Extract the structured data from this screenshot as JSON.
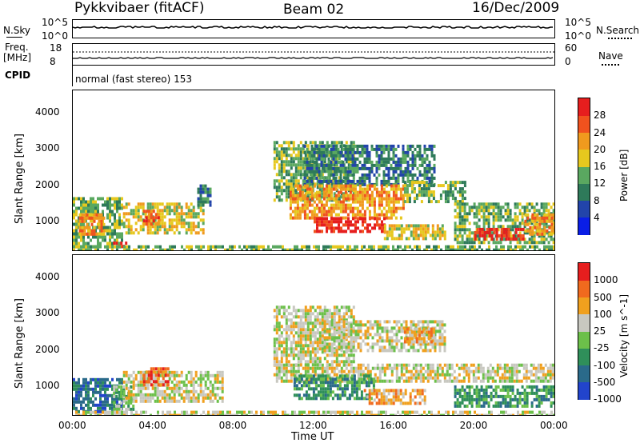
{
  "header": {
    "station": "Pykkvibaer (fitACF)",
    "beam": "Beam 02",
    "date": "16/Dec/2009"
  },
  "noise_panel": {
    "left_label": "N.Sky",
    "left_ticks": [
      "10^5",
      "10^0"
    ],
    "right_label": "N.Search",
    "right_ticks": [
      "10^5",
      "10^0"
    ],
    "series_color": "#000000"
  },
  "freq_panel": {
    "left_label_1": "Freq.",
    "left_label_2": "[MHz]",
    "left_ticks": [
      "18",
      "8"
    ],
    "right_label": "Nave",
    "right_ticks": [
      "60",
      "0"
    ],
    "cpid_label": "CPID",
    "mode_text": "normal (fast stereo) 153"
  },
  "x_axis": {
    "label": "Time UT",
    "ticks": [
      "00:00",
      "04:00",
      "08:00",
      "12:00",
      "16:00",
      "20:00",
      "00:00"
    ]
  },
  "chart_data": [
    {
      "type": "heatmap",
      "quantity": "Power",
      "xlabel": "Time UT",
      "ylabel": "Slant Range [km]",
      "xlim_hours": [
        0,
        24
      ],
      "ylim": [
        180,
        4600
      ],
      "y_ticks": [
        1000,
        2000,
        3000,
        4000
      ],
      "colorbar": {
        "label": "Power [dB]",
        "ticks": [
          28,
          24,
          20,
          16,
          12,
          8,
          4
        ],
        "colors": [
          "#0a1ee6",
          "#2244aa",
          "#2e7a5a",
          "#5aa860",
          "#e6c81e",
          "#f09a1e",
          "#f0521e",
          "#e61e1e"
        ]
      },
      "regions": [
        {
          "t": [
            0.0,
            2.5
          ],
          "r": [
            260,
            1650
          ],
          "level": 3
        },
        {
          "t": [
            0.3,
            1.6
          ],
          "r": [
            600,
            1200
          ],
          "level": 5
        },
        {
          "t": [
            2.0,
            2.6
          ],
          "r": [
            280,
            420
          ],
          "level": 7
        },
        {
          "t": [
            2.5,
            6.5
          ],
          "r": [
            700,
            1500
          ],
          "level": 4
        },
        {
          "t": [
            3.5,
            4.3
          ],
          "r": [
            900,
            1300
          ],
          "level": 6
        },
        {
          "t": [
            6.2,
            6.8
          ],
          "r": [
            1400,
            2000
          ],
          "level": 2
        },
        {
          "t": [
            0.0,
            24.0
          ],
          "r": [
            200,
            320
          ],
          "level": 3
        },
        {
          "t": [
            10.0,
            14.0
          ],
          "r": [
            1600,
            3200
          ],
          "level": 3
        },
        {
          "t": [
            11.5,
            18.0
          ],
          "r": [
            2000,
            3100
          ],
          "level": 2
        },
        {
          "t": [
            10.8,
            16.5
          ],
          "r": [
            1100,
            2000
          ],
          "level": 5
        },
        {
          "t": [
            12.0,
            15.5
          ],
          "r": [
            700,
            1100
          ],
          "level": 7
        },
        {
          "t": [
            15.5,
            18.5
          ],
          "r": [
            500,
            900
          ],
          "level": 4
        },
        {
          "t": [
            16.5,
            19.5
          ],
          "r": [
            1500,
            2100
          ],
          "level": 3
        },
        {
          "t": [
            19.0,
            24.0
          ],
          "r": [
            400,
            1500
          ],
          "level": 3
        },
        {
          "t": [
            20.0,
            22.5
          ],
          "r": [
            450,
            800
          ],
          "level": 7
        },
        {
          "t": [
            22.5,
            24.0
          ],
          "r": [
            600,
            1200
          ],
          "level": 5
        }
      ]
    },
    {
      "type": "heatmap",
      "quantity": "Velocity",
      "xlabel": "Time UT",
      "ylabel": "Slant Range [km]",
      "xlim_hours": [
        0,
        24
      ],
      "ylim": [
        180,
        4600
      ],
      "y_ticks": [
        1000,
        2000,
        3000,
        4000
      ],
      "colorbar": {
        "label": "Velocity [m s^-1]",
        "ticks": [
          1000,
          500,
          100,
          25,
          -25,
          -100,
          -500,
          -1000
        ],
        "colors": [
          "#2244cc",
          "#2a6a8a",
          "#2f8f5a",
          "#6cc04a",
          "#c8c8c0",
          "#f0a01e",
          "#f06a1e",
          "#e61e1e"
        ]
      },
      "regions": [
        {
          "t": [
            0.0,
            2.5
          ],
          "r": [
            300,
            1200
          ],
          "level": 1
        },
        {
          "t": [
            2.0,
            3.0
          ],
          "r": [
            300,
            1000
          ],
          "level": 3
        },
        {
          "t": [
            2.5,
            7.5
          ],
          "r": [
            600,
            1400
          ],
          "level": 4
        },
        {
          "t": [
            3.5,
            4.8
          ],
          "r": [
            1000,
            1500
          ],
          "level": 6
        },
        {
          "t": [
            10.0,
            24.0
          ],
          "r": [
            1100,
            1600
          ],
          "level": 4
        },
        {
          "t": [
            10.0,
            14.0
          ],
          "r": [
            1600,
            3200
          ],
          "level": 4
        },
        {
          "t": [
            12.5,
            18.5
          ],
          "r": [
            2000,
            2800
          ],
          "level": 4
        },
        {
          "t": [
            11.0,
            15.0
          ],
          "r": [
            600,
            1300
          ],
          "level": 2
        },
        {
          "t": [
            14.5,
            17.5
          ],
          "r": [
            500,
            900
          ],
          "level": 5
        },
        {
          "t": [
            16.5,
            18.0
          ],
          "r": [
            2200,
            2600
          ],
          "level": 5
        },
        {
          "t": [
            19.0,
            24.0
          ],
          "r": [
            400,
            1000
          ],
          "level": 2
        },
        {
          "t": [
            0.0,
            24.0
          ],
          "r": [
            180,
            300
          ],
          "level": 4
        }
      ]
    }
  ]
}
